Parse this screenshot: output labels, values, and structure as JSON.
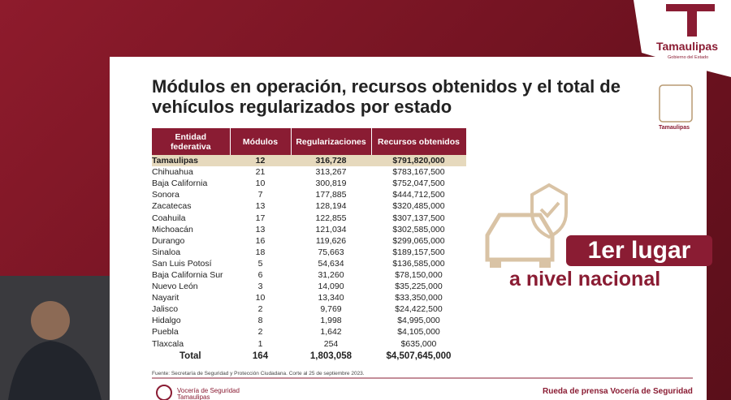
{
  "header": {
    "title": "Módulos en operación, recursos obtenidos y el total de vehículos regularizados por estado",
    "brand": "Tamaulipas",
    "brand_sub": "Gobierno del Estado",
    "seal_label": "Tamaulipas"
  },
  "table": {
    "columns": [
      "Entidad federativa",
      "Módulos",
      "Regularizaciones",
      "Recursos obtenidos"
    ],
    "rows": [
      [
        "Tamaulipas",
        "12",
        "316,728",
        "$791,820,000"
      ],
      [
        "Chihuahua",
        "21",
        "313,267",
        "$783,167,500"
      ],
      [
        "Baja California",
        "10",
        "300,819",
        "$752,047,500"
      ],
      [
        "Sonora",
        "7",
        "177,885",
        "$444,712,500"
      ],
      [
        "Zacatecas",
        "13",
        "128,194",
        "$320,485,000"
      ],
      [
        "Coahuila",
        "17",
        "122,855",
        "$307,137,500"
      ],
      [
        "Michoacán",
        "13",
        "121,034",
        "$302,585,000"
      ],
      [
        "Durango",
        "16",
        "119,626",
        "$299,065,000"
      ],
      [
        "Sinaloa",
        "18",
        "75,663",
        "$189,157,500"
      ],
      [
        "San Luis Potosí",
        "5",
        "54,634",
        "$136,585,000"
      ],
      [
        "Baja California Sur",
        "6",
        "31,260",
        "$78,150,000"
      ],
      [
        "Nuevo León",
        "3",
        "14,090",
        "$35,225,000"
      ],
      [
        "Nayarit",
        "10",
        "13,340",
        "$33,350,000"
      ],
      [
        "Jalisco",
        "2",
        "9,769",
        "$24,422,500"
      ],
      [
        "Hidalgo",
        "8",
        "1,998",
        "$4,995,000"
      ],
      [
        "Puebla",
        "2",
        "1,642",
        "$4,105,000"
      ],
      [
        "Tlaxcala",
        "1",
        "254",
        "$635,000"
      ]
    ],
    "total": [
      "Total",
      "164",
      "1,803,058",
      "$4,507,645,000"
    ]
  },
  "source": "Fuente: Secretaría de Seguridad y Protección Ciudadana. Corte al 25 de septiembre 2023.",
  "highlight": {
    "rank": "1er lugar",
    "scope": "a nivel nacional"
  },
  "footer": {
    "event": "Rueda de prensa Vocería de Seguridad",
    "logo_line1": "Vocería de Seguridad",
    "logo_line2": "Tamaulipas"
  }
}
